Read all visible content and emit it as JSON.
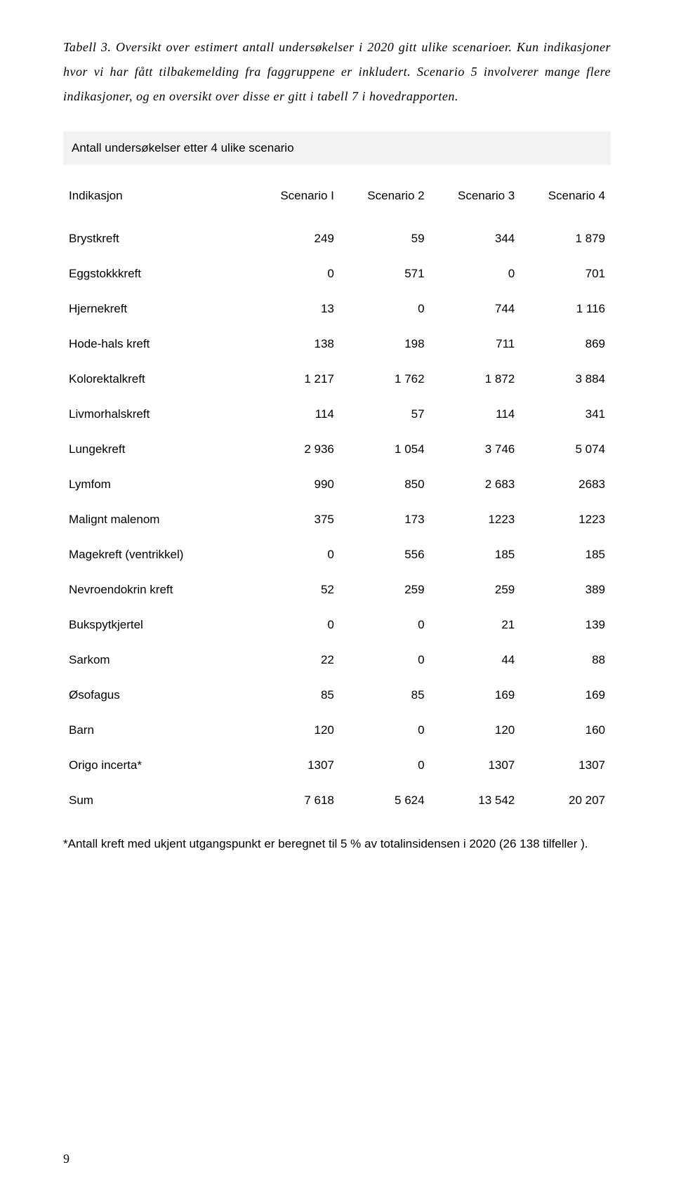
{
  "caption": "Tabell 3. Oversikt over estimert antall undersøkelser i 2020 gitt ulike scenarioer. Kun indikasjoner hvor vi har fått tilbakemelding fra faggruppene er inkludert. Scenario 5 involverer mange flere indikasjoner, og en oversikt over disse er gitt i tabell 7 i hovedrapporten.",
  "table": {
    "title": "Antall undersøkelser etter 4 ulike scenario",
    "columns": [
      "Indikasjon",
      "Scenario I",
      "Scenario 2",
      "Scenario 3",
      "Scenario 4"
    ],
    "rows": [
      [
        "Brystkreft",
        "249",
        "59",
        "344",
        "1 879"
      ],
      [
        "Eggstokkkreft",
        "0",
        "571",
        "0",
        "701"
      ],
      [
        "Hjernekreft",
        "13",
        "0",
        "744",
        "1 116"
      ],
      [
        "Hode-hals kreft",
        "138",
        "198",
        "711",
        "869"
      ],
      [
        "Kolorektalkreft",
        "1 217",
        "1 762",
        "1 872",
        "3 884"
      ],
      [
        "Livmorhalskreft",
        "114",
        "57",
        "114",
        "341"
      ],
      [
        "Lungekreft",
        "2 936",
        "1 054",
        "3 746",
        "5 074"
      ],
      [
        "Lymfom",
        "990",
        "850",
        "2 683",
        "2683"
      ],
      [
        "Malignt malenom",
        "375",
        "173",
        "1223",
        "1223"
      ],
      [
        "Magekreft (ventrikkel)",
        "0",
        "556",
        "185",
        "185"
      ],
      [
        "Nevroendokrin kreft",
        "52",
        "259",
        "259",
        "389"
      ],
      [
        "Bukspytkjertel",
        "0",
        "0",
        "21",
        "139"
      ],
      [
        "Sarkom",
        "22",
        "0",
        "44",
        "88"
      ],
      [
        "Øsofagus",
        "85",
        "85",
        "169",
        "169"
      ],
      [
        "Barn",
        "120",
        "0",
        "120",
        "160"
      ],
      [
        "Origo incerta*",
        "1307",
        "0",
        "1307",
        "1307"
      ],
      [
        "Sum",
        "7 618",
        "5 624",
        "13 542",
        "20 207"
      ]
    ]
  },
  "footnote": "*Antall kreft med ukjent utgangspunkt er beregnet til 5 % av totalinsidensen i 2020 (26 138 tilfeller ).",
  "page_number": "9"
}
